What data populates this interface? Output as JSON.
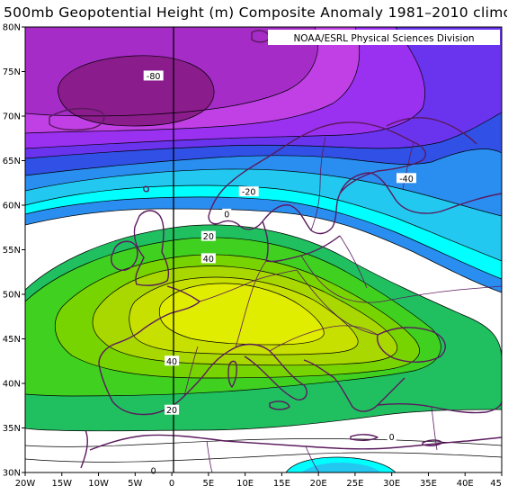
{
  "title": "500mb Geopotential Height (m) Composite Anomaly 1981–2010 climo",
  "credit": "NOAA/ESRL Physical Sciences Division",
  "lat_ticks": [
    "80N",
    "75N",
    "70N",
    "65N",
    "60N",
    "55N",
    "50N",
    "45N",
    "40N",
    "35N",
    "30N"
  ],
  "lon_ticks": [
    "20W",
    "15W",
    "10W",
    "5W",
    "0",
    "5E",
    "10E",
    "15E",
    "20E",
    "25E",
    "30E",
    "35E",
    "40E",
    "45"
  ],
  "map_extent": {
    "lon_min": -20,
    "lon_max": 45,
    "lat_min": 30,
    "lat_max": 80
  },
  "contour_labels": [
    {
      "text": "-80",
      "lon": -2.5,
      "lat": 74.5
    },
    {
      "text": "-40",
      "lon": 32,
      "lat": 63
    },
    {
      "text": "-20",
      "lon": 10.5,
      "lat": 61.5
    },
    {
      "text": "0",
      "lon": 7.5,
      "lat": 59
    },
    {
      "text": "20",
      "lon": 5,
      "lat": 56.5
    },
    {
      "text": "40",
      "lon": 5,
      "lat": 54
    },
    {
      "text": "40",
      "lon": 0,
      "lat": 42.5
    },
    {
      "text": "20",
      "lon": 0,
      "lat": 37
    },
    {
      "text": "0",
      "lon": 30,
      "lat": 34
    },
    {
      "text": "0",
      "lon": -2.5,
      "lat": 30.2
    }
  ],
  "colors": {
    "m80": "#8a1c8c",
    "m60": "#a62cc8",
    "m50": "#c040e6",
    "m40": "#9a30f0",
    "m30": "#6a34ee",
    "m20": "#3050e6",
    "m10": "#2a8ef0",
    "m5": "#22c8f0",
    "zero": "#00ffff",
    "neutral": "#ffffff",
    "p10": "#20c060",
    "p20": "#40d020",
    "p30": "#78d400",
    "p40": "#a8d800",
    "p50": "#c8e000",
    "p60": "#e0ec00",
    "coast": "#5a1a5e",
    "contour": "#000000"
  }
}
